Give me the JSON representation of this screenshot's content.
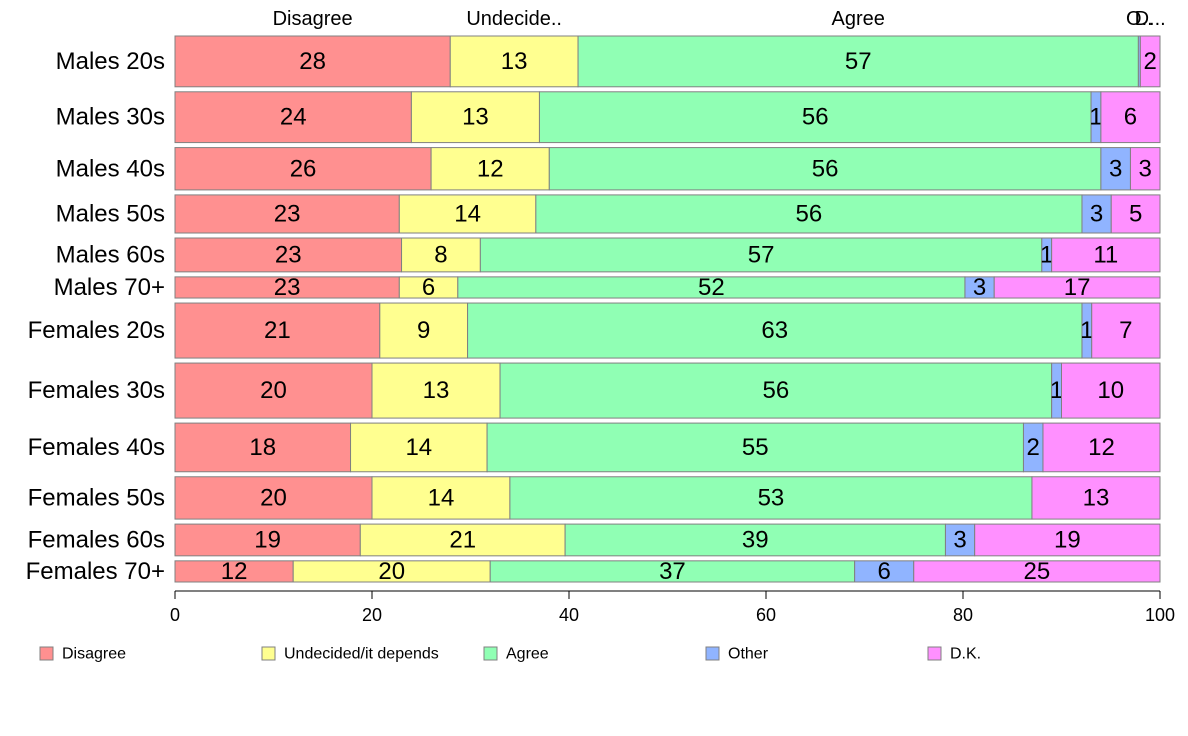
{
  "chart_data": {
    "type": "bar",
    "orientation": "horizontal",
    "stacked": true,
    "normalized": true,
    "title": "",
    "xlabel": "",
    "ylabel": "",
    "xlim": [
      0,
      100
    ],
    "x_ticks": [
      0,
      20,
      40,
      60,
      80,
      100
    ],
    "x_tick_labels": [
      "0",
      "20",
      "40",
      "60",
      "80",
      "100"
    ],
    "legend_position": "bottom",
    "categories": [
      "Males 20s",
      "Males 30s",
      "Males 40s",
      "Males 50s",
      "Males 60s",
      "Males 70+",
      "Females 20s",
      "Females 30s",
      "Females 40s",
      "Females 50s",
      "Females 60s",
      "Females 70+"
    ],
    "category_weights": [
      1.2,
      1.2,
      1.0,
      0.9,
      0.8,
      0.5,
      1.3,
      1.3,
      1.15,
      1.0,
      0.75,
      0.5
    ],
    "series": [
      {
        "name": "Disagree",
        "color": "#FF9090",
        "values": [
          28,
          24,
          26,
          23,
          23,
          23,
          21,
          20,
          18,
          20,
          19,
          12
        ],
        "labels": [
          "28",
          "24",
          "26",
          "23",
          "23",
          "23",
          "21",
          "20",
          "18",
          "20",
          "19",
          "12"
        ]
      },
      {
        "name": "Undecided/it depends",
        "color": "#FFFF90",
        "values": [
          13,
          13,
          12,
          14,
          8,
          6,
          9,
          13,
          14,
          14,
          21,
          20
        ],
        "labels": [
          "13",
          "13",
          "12",
          "14",
          "8",
          "6",
          "9",
          "13",
          "14",
          "14",
          "21",
          "20"
        ]
      },
      {
        "name": "Agree",
        "color": "#90FFB4",
        "values": [
          57,
          56,
          56,
          56,
          57,
          52,
          63,
          56,
          55,
          53,
          39,
          37
        ],
        "labels": [
          "57",
          "56",
          "56",
          "56",
          "57",
          "52",
          "63",
          "56",
          "55",
          "53",
          "39",
          "37"
        ]
      },
      {
        "name": "Other",
        "color": "#90B4FF",
        "values": [
          0.2,
          1,
          3,
          3,
          1,
          3,
          1,
          1,
          2,
          0,
          3,
          6
        ],
        "labels": [
          "",
          "1",
          "3",
          "3",
          "1",
          "3",
          "1",
          "1",
          "2",
          "",
          "3",
          "6"
        ]
      },
      {
        "name": "D.K.",
        "color": "#FF90FF",
        "values": [
          2,
          6,
          3,
          5,
          11,
          17,
          7,
          10,
          12,
          13,
          19,
          25
        ],
        "labels": [
          "2",
          "6",
          "3",
          "5",
          "11",
          "17",
          "7",
          "10",
          "12",
          "13",
          "19",
          "25"
        ]
      }
    ],
    "top_labels": [
      "Disagree",
      "Undecide..",
      "Agree",
      "O..",
      "D..."
    ]
  }
}
